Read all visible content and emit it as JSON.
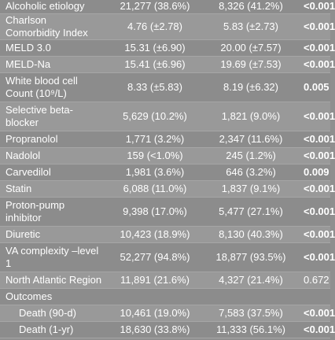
{
  "table": {
    "rows": [
      {
        "label": "Alcoholic etiology",
        "g1": "21,277 (38.6%)",
        "g2": "8,326 (41.2%)",
        "p": "<0.001",
        "bold": true,
        "h": 20
      },
      {
        "label": "Charlson Comorbidity Index",
        "g1": "4.76 (±2.78)",
        "g2": "5.83 (±2.73)",
        "p": "<0.001",
        "bold": true,
        "h": 33
      },
      {
        "label": "MELD 3.0",
        "g1": "15.31 (±6.90)",
        "g2": "20.00 (±7.57)",
        "p": "<0.001",
        "bold": true,
        "h": 21
      },
      {
        "label": "MELD-Na",
        "g1": "15.41 (±6.96)",
        "g2": "19.69 (±7.53)",
        "p": "<0.001",
        "bold": true,
        "h": 21
      },
      {
        "label": "White blood cell Count (10⁹/L)",
        "g1": "8.33 (±5.83)",
        "g2": "8.19 (±6.32)",
        "p": "0.005",
        "bold": true,
        "h": 37
      },
      {
        "label": "Selective beta-blocker",
        "g1": "5,629 (10.2%)",
        "g2": "1,821 (9.0%)",
        "p": "<0.001",
        "bold": true,
        "h": 37
      },
      {
        "label": "Propranolol",
        "g1": "1,771 (3.2%)",
        "g2": "2,347 (11.6%)",
        "p": "<0.001",
        "bold": true,
        "h": 21
      },
      {
        "label": "Nadolol",
        "g1": "159 (<1.0%)",
        "g2": "245 (1.2%)",
        "p": "<0.001",
        "bold": true,
        "h": 21
      },
      {
        "label": "Carvedilol",
        "g1": "1,981 (3.6%)",
        "g2": "646 (3.2%)",
        "p": "0.009",
        "bold": true,
        "h": 21
      },
      {
        "label": "Statin",
        "g1": "6,088 (11.0%)",
        "g2": "1,837 (9.1%)",
        "p": "<0.001",
        "bold": true,
        "h": 21
      },
      {
        "label": "Proton-pump inhibitor",
        "g1": "9,398 (17.0%)",
        "g2": "5,477 (27.1%)",
        "p": "<0.001",
        "bold": true,
        "h": 37
      },
      {
        "label": "Diuretic",
        "g1": "10,423 (18.9%)",
        "g2": "8,130 (40.3%)",
        "p": "<0.001",
        "bold": true,
        "h": 21
      },
      {
        "label": "VA complexity –level 1",
        "g1": "52,277 (94.8%)",
        "g2": "18,877 (93.5%)",
        "p": "<0.001",
        "bold": true,
        "h": 37
      },
      {
        "label": "North Atlantic Region",
        "g1": "11,891 (21.6%)",
        "g2": "4,327 (21.4%)",
        "p": "0.672",
        "bold": false,
        "h": 21
      },
      {
        "label": "Outcomes",
        "g1": "",
        "g2": "",
        "p": "",
        "bold": false,
        "h": 21,
        "section": true
      },
      {
        "label": "Death (90-d)",
        "g1": "10,461 (19.0%)",
        "g2": "7,583 (37.5%)",
        "p": "<0.001",
        "bold": true,
        "h": 21,
        "indent": true
      },
      {
        "label": "Death (1-yr)",
        "g1": "18,630 (33.8%)",
        "g2": "11,333 (56.1%)",
        "p": "<0.001",
        "bold": true,
        "h": 21,
        "indent": true
      }
    ]
  }
}
